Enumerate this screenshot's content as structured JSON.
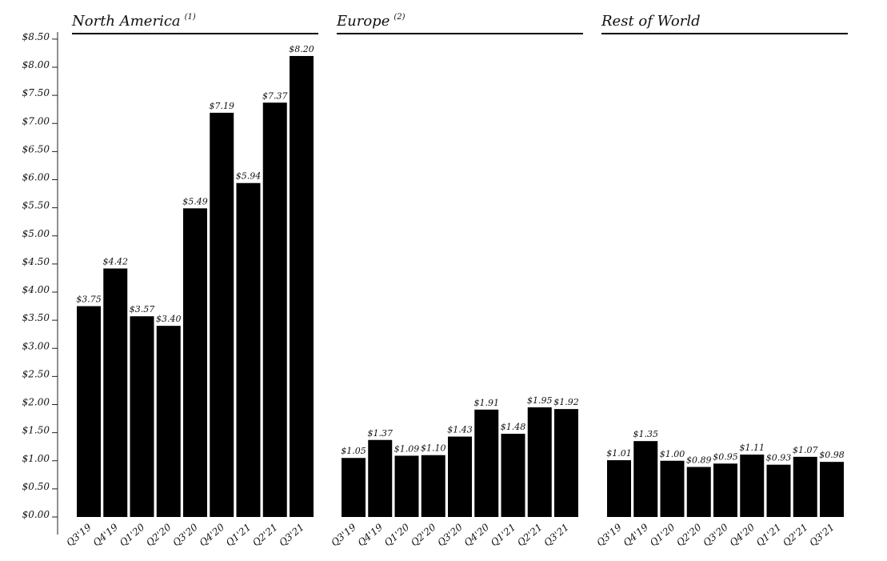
{
  "chart_data": {
    "type": "bar",
    "y_axis": {
      "ylim": [
        0,
        8.5
      ],
      "ticks": [
        0,
        0.5,
        1.0,
        1.5,
        2.0,
        2.5,
        3.0,
        3.5,
        4.0,
        4.5,
        5.0,
        5.5,
        6.0,
        6.5,
        7.0,
        7.5,
        8.0,
        8.5
      ],
      "tick_labels": [
        "$0.00",
        "$0.50",
        "$1.00",
        "$1.50",
        "$2.00",
        "$2.50",
        "$3.00",
        "$3.50",
        "$4.00",
        "$4.50",
        "$5.00",
        "$5.50",
        "$6.00",
        "$6.50",
        "$7.00",
        "$7.50",
        "$8.00",
        "$8.50"
      ]
    },
    "grid": false,
    "categories": [
      "Q3'19",
      "Q4'19",
      "Q1'20",
      "Q2'20",
      "Q3'20",
      "Q4'20",
      "Q1'21",
      "Q2'21",
      "Q3'21"
    ],
    "panels": [
      {
        "title": "North America",
        "note": "(1)",
        "values": [
          3.75,
          4.42,
          3.57,
          3.4,
          5.49,
          7.19,
          5.94,
          7.37,
          8.2
        ],
        "value_labels": [
          "$3.75",
          "$4.42",
          "$3.57",
          "$3.40",
          "$5.49",
          "$7.19",
          "$5.94",
          "$7.37",
          "$8.20"
        ]
      },
      {
        "title": "Europe",
        "note": "(2)",
        "values": [
          1.05,
          1.37,
          1.09,
          1.1,
          1.43,
          1.91,
          1.48,
          1.95,
          1.92
        ],
        "value_labels": [
          "$1.05",
          "$1.37",
          "$1.09",
          "$1.10",
          "$1.43",
          "$1.91",
          "$1.48",
          "$1.95",
          "$1.92"
        ]
      },
      {
        "title": "Rest of World",
        "note": "",
        "values": [
          1.01,
          1.35,
          1.0,
          0.89,
          0.95,
          1.11,
          0.93,
          1.07,
          0.98
        ],
        "value_labels": [
          "$1.01",
          "$1.35",
          "$1.00",
          "$0.89",
          "$0.95",
          "$1.11",
          "$0.93",
          "$1.07",
          "$0.98"
        ]
      }
    ],
    "colors": {
      "bar": "#000000",
      "axis": "#222222"
    }
  }
}
